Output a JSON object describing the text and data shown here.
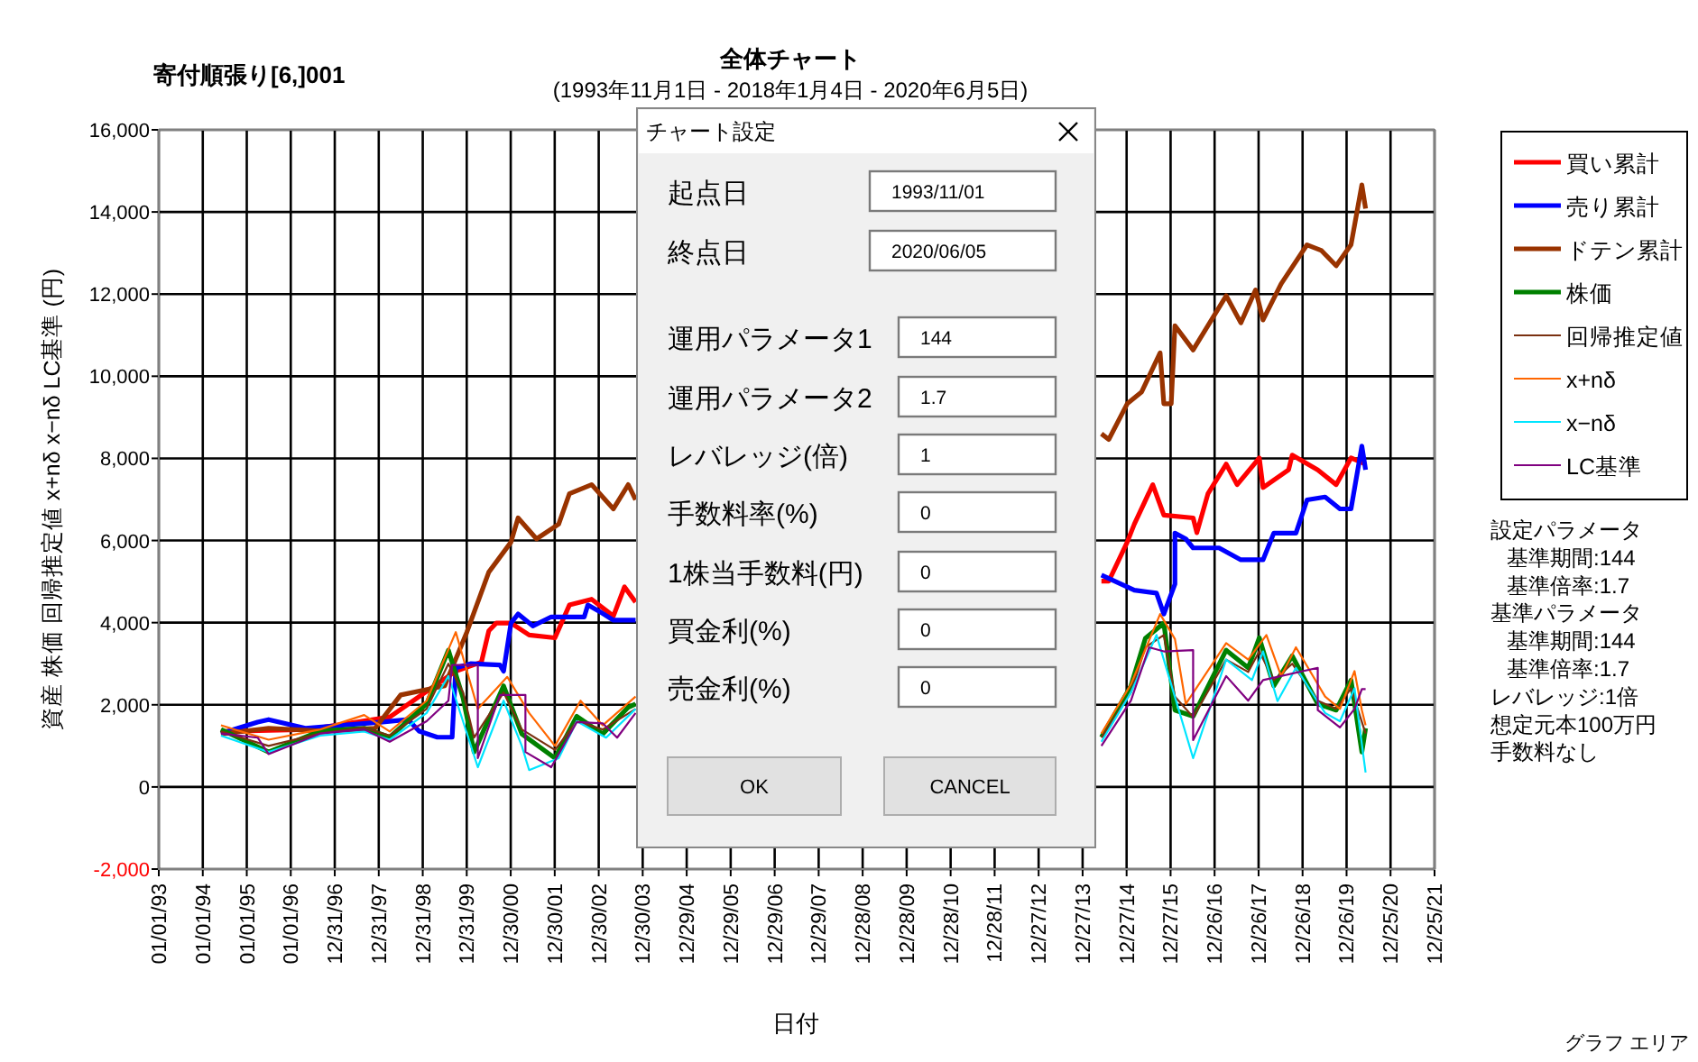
{
  "chart_data": [
    {
      "type": "line",
      "title": "全体チャート",
      "subtitle": "(1993年11月1日 - 2018年1月4日 - 2020年6月5日)",
      "xlabel": "日付",
      "ylabel": "資産 株価 回帰推定値 x+nδ x−nδ LC基準 (円)",
      "annotations": [
        "寄付順張り[6,]001",
        "設定パラメータ",
        "基準期間:144",
        "基準倍率:1.7",
        "基準パラメータ",
        "基準期間:144",
        "基準倍率:1.7",
        "レバレッジ:1倍",
        "想定元本100万円",
        "手数料なし",
        "グラフ エリア"
      ],
      "xlim": [
        "1993-01-01",
        "2021-12-25"
      ],
      "xticks": [
        {
          "value": "1993-01-01",
          "label": "01/01/93"
        },
        {
          "value": "1994-01-01",
          "label": "01/01/94"
        },
        {
          "value": "1995-01-01",
          "label": "01/01/95"
        },
        {
          "value": "1996-01-01",
          "label": "01/01/96"
        },
        {
          "value": "1996-12-31",
          "label": "12/31/96"
        },
        {
          "value": "1997-12-31",
          "label": "12/31/97"
        },
        {
          "value": "1998-12-31",
          "label": "12/31/98"
        },
        {
          "value": "1999-12-31",
          "label": "12/31/99"
        },
        {
          "value": "2000-12-30",
          "label": "12/30/00"
        },
        {
          "value": "2001-12-30",
          "label": "12/30/01"
        },
        {
          "value": "2002-12-30",
          "label": "12/30/02"
        },
        {
          "value": "2003-12-30",
          "label": "12/30/03"
        },
        {
          "value": "2004-12-29",
          "label": "12/29/04"
        },
        {
          "value": "2005-12-29",
          "label": "12/29/05"
        },
        {
          "value": "2006-12-29",
          "label": "12/29/06"
        },
        {
          "value": "2007-12-29",
          "label": "12/29/07"
        },
        {
          "value": "2008-12-28",
          "label": "12/28/08"
        },
        {
          "value": "2009-12-28",
          "label": "12/28/09"
        },
        {
          "value": "2010-12-28",
          "label": "12/28/10"
        },
        {
          "value": "2011-12-28",
          "label": "12/28/11"
        },
        {
          "value": "2012-12-27",
          "label": "12/27/12"
        },
        {
          "value": "2013-12-27",
          "label": "12/27/13"
        },
        {
          "value": "2014-12-27",
          "label": "12/27/14"
        },
        {
          "value": "2015-12-27",
          "label": "12/27/15"
        },
        {
          "value": "2016-12-26",
          "label": "12/26/16"
        },
        {
          "value": "2017-12-26",
          "label": "12/26/17"
        },
        {
          "value": "2018-12-26",
          "label": "12/26/18"
        },
        {
          "value": "2019-12-26",
          "label": "12/26/19"
        },
        {
          "value": "2020-12-25",
          "label": "12/25/20"
        },
        {
          "value": "2021-12-25",
          "label": "12/25/21"
        }
      ],
      "ylim": [
        -2000,
        16000
      ],
      "yticks": [
        {
          "value": -2000,
          "label": "-2,000"
        },
        0,
        {
          "value": 2000,
          "label": "2,000"
        },
        {
          "value": 4000,
          "label": "4,000"
        },
        {
          "value": 6000,
          "label": "6,000"
        },
        {
          "value": 8000,
          "label": "8,000"
        },
        {
          "value": 10000,
          "label": "10,000"
        },
        {
          "value": 12000,
          "label": "12,000"
        },
        {
          "value": 14000,
          "label": "14,000"
        },
        {
          "value": 16000,
          "label": "16,000"
        }
      ],
      "grid": true,
      "legend": "right",
      "marker": "none",
      "line_style": "solid",
      "series": [
        {
          "name": "買い累計",
          "color": "#ff0000",
          "x": [
            "1994-06",
            "1996-06",
            "1998-04",
            "1999-10",
            "2000-05",
            "2000-07",
            "2000-09",
            "2001-01",
            "2001-06",
            "2002-01",
            "2002-05",
            "2002-11",
            "2003-05",
            "2003-08",
            "2003-11",
            "2008-01",
            "2014-06",
            "2014-08",
            "2015-01",
            "2015-03",
            "2015-08",
            "2015-11",
            "2016-07",
            "2016-08",
            "2016-11",
            "2017-04",
            "2017-07",
            "2018-01",
            "2018-02",
            "2018-09",
            "2018-10",
            "2019-05",
            "2019-10",
            "2020-02",
            "2020-06"
          ],
          "values": [
            1350,
            1400,
            1700,
            2820,
            3040,
            3800,
            3990,
            3990,
            3700,
            3630,
            4430,
            4570,
            4160,
            4870,
            4500,
            null,
            5010,
            5010,
            5960,
            6400,
            7360,
            6620,
            6550,
            6190,
            7140,
            7860,
            7360,
            8010,
            7290,
            7720,
            8080,
            7720,
            7360,
            8010,
            7860
          ]
        },
        {
          "name": "売り累計",
          "color": "#0000ff",
          "x": [
            "1994-06",
            "1995-04",
            "1995-07",
            "1996-05",
            "1998-02",
            "1998-09",
            "1998-12",
            "1999-05",
            "1999-09",
            "1999-10",
            "2000-02",
            "2000-10",
            "2000-11",
            "2001-01",
            "2001-03",
            "2001-07",
            "2001-12",
            "2002-09",
            "2002-10",
            "2003-01",
            "2003-05",
            "2003-11",
            "2008-01",
            "2014-06",
            "2015-03",
            "2015-09",
            "2015-11",
            "2016-02",
            "2016-02",
            "2016-05",
            "2016-07",
            "2017-02",
            "2017-08",
            "2018-02",
            "2018-05",
            "2018-11",
            "2019-02",
            "2019-07",
            "2019-11",
            "2020-02",
            "2020-05",
            "2020-06"
          ],
          "values": [
            1300,
            1580,
            1640,
            1430,
            1580,
            1640,
            1360,
            1210,
            1210,
            2900,
            3000,
            2970,
            2820,
            3990,
            4210,
            3920,
            4140,
            4140,
            4430,
            4280,
            4060,
            4060,
            null,
            5160,
            4790,
            4720,
            4210,
            4940,
            6180,
            6040,
            5820,
            5820,
            5530,
            5530,
            6180,
            6180,
            6990,
            7060,
            6770,
            6770,
            8300,
            7720
          ]
        },
        {
          "name": "ドテン累計",
          "color": "#993300",
          "x": [
            "1994-06",
            "1995-07",
            "1996-09",
            "1997-12",
            "1998-07",
            "1999-07",
            "2000-01",
            "2000-07",
            "2001-01",
            "2001-03",
            "2001-08",
            "2002-02",
            "2002-05",
            "2002-11",
            "2003-05",
            "2003-09",
            "2003-11",
            "2008-01",
            "2014-06",
            "2014-08",
            "2015-01",
            "2015-05",
            "2015-10",
            "2015-11",
            "2016-01",
            "2016-02",
            "2016-07",
            "2017-04",
            "2017-08",
            "2017-12",
            "2018-02",
            "2018-07",
            "2019-02",
            "2019-06",
            "2019-10",
            "2020-02",
            "2020-05",
            "2020-06"
          ],
          "values": [
            1290,
            1430,
            1360,
            1430,
            2240,
            2460,
            3770,
            5230,
            5960,
            6550,
            6040,
            6400,
            7140,
            7360,
            6770,
            7360,
            6990,
            null,
            8600,
            8460,
            9330,
            9620,
            10570,
            9330,
            9330,
            11230,
            10640,
            11960,
            11300,
            12100,
            11370,
            12250,
            13200,
            13060,
            12690,
            13200,
            14660,
            14080
          ]
        },
        {
          "name": "株価",
          "color": "#008000",
          "x": [
            "1994-06",
            "1995-07",
            "1996-09",
            "1997-09",
            "1998-04",
            "1999-02",
            "1999-08",
            "1999-12",
            "2000-03",
            "2000-11",
            "2001-04",
            "2002-01",
            "2002-07",
            "2003-02",
            "2003-09",
            "2003-11",
            "2008-01",
            "2014-06",
            "2015-02",
            "2015-06",
            "2015-11",
            "2016-02",
            "2016-07",
            "2017-04",
            "2017-10",
            "2018-01",
            "2018-05",
            "2018-10",
            "2019-05",
            "2019-10",
            "2020-02",
            "2020-05",
            "2020-06"
          ],
          "values": [
            1400,
            850,
            1360,
            1430,
            1210,
            2020,
            3330,
            2160,
            850,
            2460,
            1290,
            700,
            1720,
            1290,
            1940,
            2020,
            null,
            1210,
            2460,
            3620,
            3990,
            1870,
            1720,
            3330,
            2900,
            3630,
            2460,
            3190,
            2020,
            1870,
            2600,
            850,
            1430
          ]
        },
        {
          "name": "回帰推定値",
          "color": "#7a3010",
          "x": [
            "1994-06",
            "1995-07",
            "1996-09",
            "1997-09",
            "1998-04",
            "1999-02",
            "1999-08",
            "1999-12",
            "2000-03",
            "2000-11",
            "2001-04",
            "2002-01",
            "2002-07",
            "2003-02",
            "2003-11",
            "2008-01",
            "2014-06",
            "2015-02",
            "2015-06",
            "2015-11",
            "2016-02",
            "2016-07",
            "2017-04",
            "2017-10",
            "2018-01",
            "2018-05",
            "2018-10",
            "2019-05",
            "2019-10",
            "2020-02",
            "2020-06"
          ],
          "values": [
            1350,
            1000,
            1300,
            1450,
            1250,
            1900,
            3000,
            2300,
            1200,
            2300,
            1400,
            900,
            1600,
            1400,
            1900,
            null,
            1200,
            2300,
            3400,
            3700,
            2200,
            1700,
            3100,
            2800,
            3300,
            2600,
            3000,
            2100,
            1900,
            2400,
            1300
          ]
        },
        {
          "name": "x+nδ",
          "color": "#ff6600",
          "x": [
            "1994-06",
            "1995-07",
            "1996-09",
            "1997-09",
            "1998-04",
            "1999-02",
            "1999-10",
            "2000-04",
            "2000-12",
            "2001-06",
            "2002-01",
            "2002-08",
            "2003-02",
            "2003-11",
            "2008-01",
            "2014-06",
            "2015-02",
            "2015-10",
            "2016-02",
            "2016-05",
            "2017-04",
            "2017-10",
            "2018-03",
            "2018-07",
            "2018-11",
            "2019-07",
            "2019-11",
            "2020-03",
            "2020-05",
            "2020-06"
          ],
          "values": [
            1500,
            1150,
            1400,
            1750,
            1350,
            2100,
            3770,
            1900,
            2680,
            1800,
            1000,
            2100,
            1500,
            2200,
            null,
            1300,
            2500,
            4210,
            3600,
            2020,
            3500,
            3100,
            3700,
            2700,
            3400,
            2200,
            1900,
            2820,
            1870,
            1500
          ]
        },
        {
          "name": "x−nδ",
          "color": "#00e5ff",
          "x": [
            "1994-06",
            "1995-07",
            "1996-09",
            "1997-09",
            "1998-04",
            "1999-02",
            "1999-08",
            "2000-04",
            "2000-11",
            "2001-04",
            "2001-06",
            "2002-02",
            "2002-07",
            "2003-03",
            "2003-11",
            "2008-01",
            "2014-06",
            "2015-02",
            "2015-09",
            "2016-07",
            "2017-04",
            "2017-11",
            "2018-02",
            "2018-06",
            "2018-11",
            "2019-07",
            "2019-11",
            "2020-03",
            "2020-06"
          ],
          "values": [
            1250,
            850,
            1250,
            1350,
            1150,
            1800,
            2700,
            480,
            2100,
            1000,
            410,
            700,
            1600,
            1200,
            1900,
            null,
            1100,
            2300,
            3700,
            700,
            3100,
            2600,
            3300,
            2090,
            2900,
            1800,
            1600,
            2400,
            350
          ]
        },
        {
          "name": "LC基準",
          "color": "#800080",
          "x": [
            "1994-06",
            "1995-04",
            "1995-07",
            "1996-09",
            "1997-09",
            "1998-04",
            "1999-02",
            "1999-08",
            "1999-09",
            "2000-04",
            "2000-04",
            "2000-10",
            "2001-05",
            "2001-05",
            "2001-12",
            "2002-07",
            "2003-02",
            "2003-06",
            "2003-11",
            "2008-01",
            "2014-06",
            "2015-02",
            "2015-07",
            "2015-11",
            "2016-07",
            "2016-07",
            "2017-04",
            "2017-10",
            "2018-02",
            "2019-05",
            "2019-05",
            "2019-11",
            "2020-03",
            "2020-05",
            "2020-06"
          ],
          "values": [
            1300,
            1200,
            800,
            1300,
            1400,
            1100,
            1600,
            2100,
            2970,
            2970,
            700,
            2240,
            2240,
            850,
            480,
            1580,
            1550,
            1200,
            1800,
            null,
            1000,
            2100,
            3400,
            3300,
            3330,
            1140,
            2700,
            2100,
            2600,
            2900,
            1870,
            1450,
            1900,
            2380,
            2380
          ]
        }
      ]
    },
    {
      "type": "other",
      "title": "チャート設定",
      "annotations": [
        "起点日",
        "1993/11/01",
        "終点日",
        "2020/06/05",
        "運用パラメータ1",
        "144",
        "運用パラメータ2",
        "1.7",
        "レバレッジ(倍)",
        "1",
        "手数料率(%)",
        "0",
        "1株当手数料(円)",
        "0",
        "買金利(%)",
        "0",
        "売金利(%)",
        "0",
        "OK",
        "CANCEL"
      ]
    }
  ]
}
